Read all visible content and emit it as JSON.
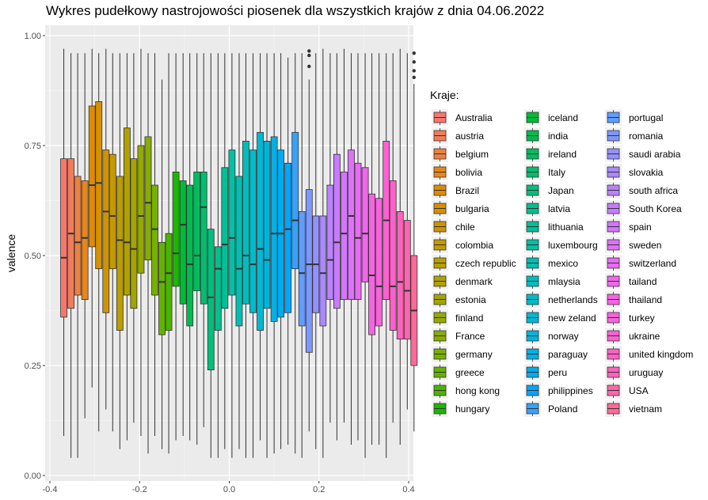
{
  "chart_data": {
    "type": "boxplot",
    "title": "Wykres pudełkowy nastrojowości piosenek dla wszystkich krajów z dnia 04.06.2022",
    "xlabel": "",
    "ylabel": "valence",
    "xlim": [
      -0.4,
      0.4
    ],
    "ylim": [
      0.0,
      1.0
    ],
    "x_ticks": [
      "-0.4",
      "-0.2",
      "0.0",
      "0.2",
      "0.4"
    ],
    "y_ticks": [
      "0.00",
      "0.25",
      "0.50",
      "0.75",
      "1.00"
    ],
    "grid": true,
    "legend_title": "Kraje:",
    "legend_position": "right",
    "series": [
      {
        "name": "Australia",
        "color": "#F8766D",
        "x": -0.369,
        "min": 0.09,
        "q1": 0.36,
        "median": 0.495,
        "q3": 0.72,
        "max": 0.97
      },
      {
        "name": "austria",
        "color": "#F37B59",
        "x": -0.353,
        "min": 0.04,
        "q1": 0.38,
        "median": 0.55,
        "q3": 0.72,
        "max": 0.96
      },
      {
        "name": "belgium",
        "color": "#ED8141",
        "x": -0.338,
        "min": 0.04,
        "q1": 0.41,
        "median": 0.53,
        "q3": 0.68,
        "max": 0.96
      },
      {
        "name": "bolivia",
        "color": "#E7861B",
        "x": -0.322,
        "min": 0.13,
        "q1": 0.4,
        "median": 0.54,
        "q3": 0.67,
        "max": 0.96
      },
      {
        "name": "Brazil",
        "color": "#DF8B00",
        "x": -0.306,
        "min": 0.2,
        "q1": 0.52,
        "median": 0.66,
        "q3": 0.84,
        "max": 0.97
      },
      {
        "name": "bulgaria",
        "color": "#D79000",
        "x": -0.291,
        "min": 0.1,
        "q1": 0.47,
        "median": 0.665,
        "q3": 0.85,
        "max": 0.96
      },
      {
        "name": "chile",
        "color": "#CE9400",
        "x": -0.275,
        "min": 0.15,
        "q1": 0.37,
        "median": 0.6,
        "q3": 0.74,
        "max": 0.97
      },
      {
        "name": "colombia",
        "color": "#C49A00",
        "x": -0.26,
        "min": 0.1,
        "q1": 0.47,
        "median": 0.59,
        "q3": 0.73,
        "max": 0.96
      },
      {
        "name": "czech republic",
        "color": "#BA9E00",
        "x": -0.244,
        "min": 0.06,
        "q1": 0.33,
        "median": 0.535,
        "q3": 0.68,
        "max": 0.96
      },
      {
        "name": "denmark",
        "color": "#AFA100",
        "x": -0.228,
        "min": 0.08,
        "q1": 0.41,
        "median": 0.53,
        "q3": 0.79,
        "max": 0.96
      },
      {
        "name": "estonia",
        "color": "#A3A500",
        "x": -0.213,
        "min": 0.12,
        "q1": 0.38,
        "median": 0.515,
        "q3": 0.72,
        "max": 0.96
      },
      {
        "name": "finland",
        "color": "#96A900",
        "x": -0.197,
        "min": 0.09,
        "q1": 0.46,
        "median": 0.59,
        "q3": 0.75,
        "max": 0.97
      },
      {
        "name": "France",
        "color": "#88AC00",
        "x": -0.181,
        "min": 0.05,
        "q1": 0.49,
        "median": 0.62,
        "q3": 0.77,
        "max": 0.96
      },
      {
        "name": "germany",
        "color": "#78B000",
        "x": -0.166,
        "min": 0.09,
        "q1": 0.41,
        "median": 0.56,
        "q3": 0.66,
        "max": 0.96
      },
      {
        "name": "greece",
        "color": "#64B200",
        "x": -0.15,
        "min": 0.06,
        "q1": 0.32,
        "median": 0.44,
        "q3": 0.53,
        "max": 0.9
      },
      {
        "name": "hong kong",
        "color": "#4AB500",
        "x": -0.135,
        "min": 0.05,
        "q1": 0.33,
        "median": 0.46,
        "q3": 0.55,
        "max": 0.96
      },
      {
        "name": "hungary",
        "color": "#1AB800",
        "x": -0.119,
        "min": 0.08,
        "q1": 0.43,
        "median": 0.505,
        "q3": 0.69,
        "max": 0.96
      },
      {
        "name": "iceland",
        "color": "#00BA38",
        "x": -0.103,
        "min": 0.09,
        "q1": 0.39,
        "median": 0.57,
        "q3": 0.67,
        "max": 0.96
      },
      {
        "name": "india",
        "color": "#00BB4E",
        "x": -0.088,
        "min": 0.08,
        "q1": 0.34,
        "median": 0.48,
        "q3": 0.66,
        "max": 0.96
      },
      {
        "name": "ireland",
        "color": "#00BD5F",
        "x": -0.072,
        "min": 0.07,
        "q1": 0.42,
        "median": 0.5,
        "q3": 0.69,
        "max": 0.96
      },
      {
        "name": "Italy",
        "color": "#00BE6F",
        "x": -0.057,
        "min": 0.11,
        "q1": 0.39,
        "median": 0.61,
        "q3": 0.69,
        "max": 0.96
      },
      {
        "name": "Japan",
        "color": "#00BF7D",
        "x": -0.041,
        "min": 0.04,
        "q1": 0.24,
        "median": 0.405,
        "q3": 0.56,
        "max": 0.96
      },
      {
        "name": "latvia",
        "color": "#00C08B",
        "x": -0.025,
        "min": 0.04,
        "q1": 0.33,
        "median": 0.47,
        "q3": 0.52,
        "max": 0.96
      },
      {
        "name": "lithuania",
        "color": "#00C098",
        "x": -0.01,
        "min": 0.06,
        "q1": 0.38,
        "median": 0.525,
        "q3": 0.7,
        "max": 0.96
      },
      {
        "name": "luxembourg",
        "color": "#00C0A5",
        "x": 0.006,
        "min": 0.04,
        "q1": 0.41,
        "median": 0.54,
        "q3": 0.74,
        "max": 0.96
      },
      {
        "name": "mexico",
        "color": "#00BFB1",
        "x": 0.022,
        "min": 0.06,
        "q1": 0.34,
        "median": 0.47,
        "q3": 0.68,
        "max": 0.96
      },
      {
        "name": "mlaysia",
        "color": "#00BDBD",
        "x": 0.037,
        "min": 0.04,
        "q1": 0.39,
        "median": 0.5,
        "q3": 0.76,
        "max": 0.96
      },
      {
        "name": "netherlands",
        "color": "#00BBC8",
        "x": 0.053,
        "min": 0.04,
        "q1": 0.37,
        "median": 0.48,
        "q3": 0.74,
        "max": 0.96
      },
      {
        "name": "new zeland",
        "color": "#00B8D3",
        "x": 0.069,
        "min": 0.08,
        "q1": 0.33,
        "median": 0.515,
        "q3": 0.78,
        "max": 0.96
      },
      {
        "name": "norway",
        "color": "#00B4DD",
        "x": 0.084,
        "min": 0.04,
        "q1": 0.38,
        "median": 0.49,
        "q3": 0.76,
        "max": 0.96
      },
      {
        "name": "paraguay",
        "color": "#00B0E7",
        "x": 0.1,
        "min": 0.05,
        "q1": 0.35,
        "median": 0.55,
        "q3": 0.77,
        "max": 0.96
      },
      {
        "name": "peru",
        "color": "#00ABF0",
        "x": 0.115,
        "min": 0.06,
        "q1": 0.36,
        "median": 0.55,
        "q3": 0.74,
        "max": 0.96
      },
      {
        "name": "philippines",
        "color": "#00A6FF",
        "x": 0.131,
        "min": 0.07,
        "q1": 0.37,
        "median": 0.56,
        "q3": 0.71,
        "max": 0.95
      },
      {
        "name": "Poland",
        "color": "#35A2FF",
        "x": 0.147,
        "min": 0.05,
        "q1": 0.47,
        "median": 0.58,
        "q3": 0.78,
        "max": 0.96
      },
      {
        "name": "portugal",
        "color": "#619CFF",
        "x": 0.162,
        "min": 0.04,
        "q1": 0.34,
        "median": 0.46,
        "q3": 0.6,
        "max": 0.96
      },
      {
        "name": "romania",
        "color": "#7E97FF",
        "x": 0.178,
        "min": 0.1,
        "q1": 0.28,
        "median": 0.48,
        "q3": 0.65,
        "max": 0.9,
        "outliers": [
          0.93,
          0.955,
          0.965
        ]
      },
      {
        "name": "saudi arabia",
        "color": "#9590FF",
        "x": 0.193,
        "min": 0.06,
        "q1": 0.37,
        "median": 0.48,
        "q3": 0.59,
        "max": 0.96
      },
      {
        "name": "slovakia",
        "color": "#A989FF",
        "x": 0.209,
        "min": 0.04,
        "q1": 0.34,
        "median": 0.46,
        "q3": 0.59,
        "max": 0.97
      },
      {
        "name": "south africa",
        "color": "#BA82FF",
        "x": 0.225,
        "min": 0.12,
        "q1": 0.4,
        "median": 0.49,
        "q3": 0.66,
        "max": 0.96
      },
      {
        "name": "South Korea",
        "color": "#C77CFF",
        "x": 0.24,
        "min": 0.08,
        "q1": 0.38,
        "median": 0.53,
        "q3": 0.73,
        "max": 0.96
      },
      {
        "name": "spain",
        "color": "#D376FF",
        "x": 0.256,
        "min": 0.12,
        "q1": 0.4,
        "median": 0.55,
        "q3": 0.69,
        "max": 0.97
      },
      {
        "name": "sweden",
        "color": "#DE71F9",
        "x": 0.272,
        "min": 0.07,
        "q1": 0.4,
        "median": 0.59,
        "q3": 0.74,
        "max": 0.96
      },
      {
        "name": "switzerland",
        "color": "#E76BF3",
        "x": 0.287,
        "min": 0.08,
        "q1": 0.4,
        "median": 0.54,
        "q3": 0.71,
        "max": 0.96
      },
      {
        "name": "tailand",
        "color": "#EF67EB",
        "x": 0.303,
        "min": 0.04,
        "q1": 0.44,
        "median": 0.55,
        "q3": 0.7,
        "max": 0.96
      },
      {
        "name": "thailand",
        "color": "#F564E3",
        "x": 0.318,
        "min": 0.07,
        "q1": 0.32,
        "median": 0.455,
        "q3": 0.64,
        "max": 0.96
      },
      {
        "name": "turkey",
        "color": "#FA62DB",
        "x": 0.334,
        "min": 0.07,
        "q1": 0.34,
        "median": 0.43,
        "q3": 0.63,
        "max": 0.96
      },
      {
        "name": "ukraine",
        "color": "#FD61D1",
        "x": 0.35,
        "min": 0.04,
        "q1": 0.4,
        "median": 0.58,
        "q3": 0.76,
        "max": 0.96
      },
      {
        "name": "united kingdom",
        "color": "#FF61C7",
        "x": 0.365,
        "min": 0.12,
        "q1": 0.33,
        "median": 0.43,
        "q3": 0.67,
        "max": 0.96
      },
      {
        "name": "uruguay",
        "color": "#FF62BC",
        "x": 0.381,
        "min": 0.07,
        "q1": 0.31,
        "median": 0.44,
        "q3": 0.6,
        "max": 0.97
      },
      {
        "name": "USA",
        "color": "#FF65AE",
        "x": 0.397,
        "min": 0.15,
        "q1": 0.31,
        "median": 0.42,
        "q3": 0.58,
        "max": 0.96
      },
      {
        "name": "vietnam",
        "color": "#FF6A98",
        "x": 0.412,
        "min": 0.1,
        "q1": 0.25,
        "median": 0.375,
        "q3": 0.5,
        "max": 0.89,
        "outliers": [
          0.905,
          0.92,
          0.94,
          0.96
        ]
      }
    ]
  }
}
